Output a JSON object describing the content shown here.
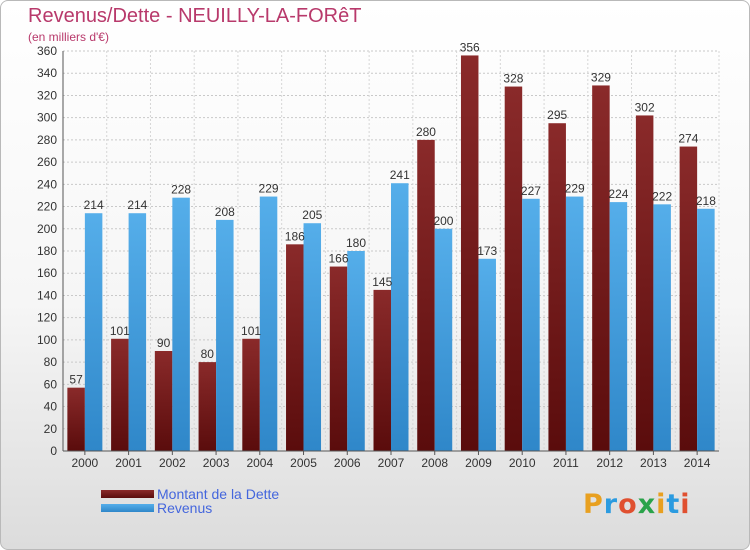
{
  "header": {
    "title": "Revenus/Dette - NEUILLY-LA-FORêT",
    "subtitle": "(en milliers d'€)"
  },
  "legend": {
    "items": [
      {
        "label": "Montant de la Dette",
        "color": "#7a1d1d"
      },
      {
        "label": "Revenus",
        "color": "#4aa3e3"
      }
    ]
  },
  "logo": {
    "letters": [
      "P",
      "r",
      "o",
      "x",
      "i",
      "t",
      "i"
    ],
    "colors": [
      "#e8a020",
      "#2b9be0",
      "#e05030",
      "#2aa34a",
      "#e8a020",
      "#2b9be0",
      "#e05030"
    ]
  },
  "chart_data": {
    "type": "bar",
    "categories": [
      "2000",
      "2001",
      "2002",
      "2003",
      "2004",
      "2005",
      "2006",
      "2007",
      "2008",
      "2009",
      "2010",
      "2011",
      "2012",
      "2013",
      "2014"
    ],
    "series": [
      {
        "name": "Montant de la Dette",
        "values": [
          57,
          101,
          90,
          80,
          101,
          186,
          166,
          145,
          280,
          356,
          328,
          295,
          329,
          302,
          274
        ],
        "labels": [
          "57",
          "101",
          "90",
          "80",
          "101",
          "186",
          "166",
          "145",
          "280",
          "356",
          "328",
          "295",
          "329",
          "302",
          "274"
        ],
        "color": "#7a1d1d"
      },
      {
        "name": "Revenus",
        "values": [
          214,
          214,
          228,
          208,
          229,
          205,
          180,
          241,
          200,
          173,
          227,
          229,
          224,
          222,
          218
        ],
        "labels": [
          "214",
          "214",
          "228",
          "208",
          "229",
          "205",
          "180",
          "241",
          "200",
          "173",
          "227",
          "229",
          "224",
          "222",
          "218"
        ],
        "color": "#4aa3e3"
      }
    ],
    "ylim": [
      0,
      360
    ],
    "yticks": [
      0,
      20,
      40,
      60,
      80,
      100,
      120,
      140,
      160,
      180,
      200,
      220,
      240,
      260,
      280,
      300,
      320,
      340,
      360
    ],
    "grid": true,
    "legend_position": "bottom-left"
  }
}
